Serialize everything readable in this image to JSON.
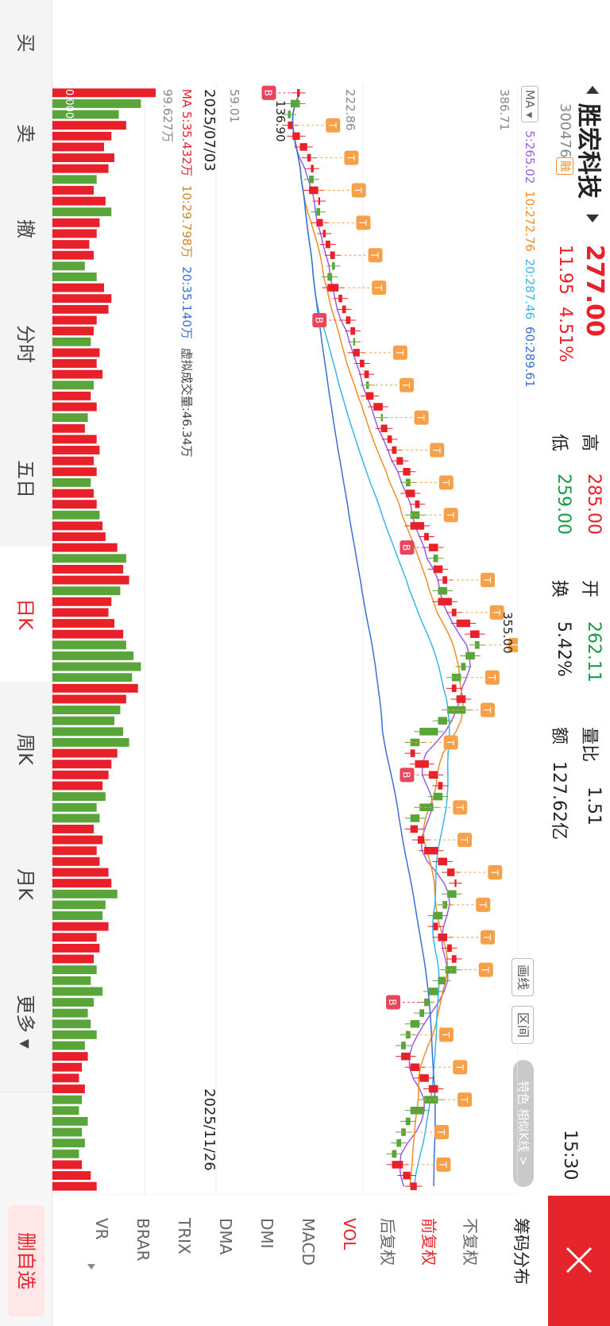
{
  "header": {
    "stock_name": "胜宏科技",
    "stock_code": "300476",
    "margin_badge": "融",
    "price": "277.00",
    "change": "11.95",
    "change_pct": "4.51%",
    "high_label": "高",
    "high_value": "285.00",
    "low_label": "低",
    "low_value": "259.00",
    "open_label": "开",
    "open_value": "262.11",
    "turnover_label": "换",
    "turnover_value": "5.42%",
    "volume_ratio_label": "量比",
    "volume_ratio_value": "1.51",
    "amount_label": "额",
    "amount_value": "127.62亿",
    "time": "15:30"
  },
  "ma_legend": {
    "selector": "MA",
    "ma5": "5:265.02",
    "ma10": "10:272.76",
    "ma20": "20:287.46",
    "ma60": "60:289.61"
  },
  "chart_tools": {
    "draw_line": "画线",
    "interval": "区间",
    "special": "特色 相似K线 >"
  },
  "price_axis": {
    "top": "386.71",
    "mid": "222.86",
    "bottom": "59.01",
    "max_marker": "355.00",
    "min_marker": "136.90"
  },
  "date_axis": {
    "start": "2025/07/03",
    "end": "2025/11/26"
  },
  "volume_legend": {
    "ma5": "MA 5:35.432万",
    "ma10": "10:29.798万",
    "ma20": "20:35.140万",
    "virtual": "虚拟成交量:46.34万",
    "axis_top": "99.627万",
    "axis_label": "0.000"
  },
  "side_panel": {
    "items": [
      "筹码分布",
      "不复权",
      "前复权",
      "后复权",
      "VOL",
      "MACD",
      "DMI",
      "DMA",
      "TRIX",
      "BRAR",
      "VR"
    ],
    "selected_index": 2,
    "selected_indicator_index": 4
  },
  "bottom_nav": {
    "items": [
      "买",
      "卖",
      "撤",
      "分时",
      "五日",
      "日K",
      "周K",
      "月K",
      "更多"
    ],
    "active_index": 5
  },
  "favorite_button": "删自选",
  "signal_labels": {
    "buy": "B",
    "sell": "T"
  },
  "colors": {
    "up": "#e8202a",
    "down": "#5aa53a",
    "ma5": "#9b5de5",
    "ma10": "#f28c28",
    "ma20": "#38b6e8",
    "ma60": "#3a6fd8",
    "sell_signal": "#f7a04a",
    "buy_signal": "#e9455d"
  },
  "chart_data": {
    "type": "candlestick",
    "date_range": [
      "2025/07/03",
      "2025/11/26"
    ],
    "ylim": [
      59.01,
      386.71
    ],
    "close_series": [
      150,
      140,
      137,
      142,
      150,
      158,
      162,
      165,
      160,
      170,
      172,
      168,
      175,
      178,
      183,
      188,
      185,
      180,
      192,
      196,
      200,
      205,
      210,
      208,
      215,
      220,
      225,
      222,
      230,
      240,
      238,
      245,
      250,
      255,
      262,
      270,
      265,
      275,
      280,
      270,
      285,
      290,
      300,
      295,
      305,
      310,
      300,
      315,
      320,
      335,
      345,
      340,
      330,
      325,
      315,
      320,
      330,
      310,
      300,
      280,
      270,
      275,
      290,
      300,
      305,
      295,
      280,
      270,
      278,
      285,
      300,
      310,
      318,
      320,
      310,
      305,
      295,
      300,
      310,
      315,
      320,
      308,
      300,
      290,
      285,
      280,
      270,
      265,
      260,
      270,
      280,
      290,
      300,
      285,
      270,
      265,
      260,
      255,
      250,
      262,
      270,
      277
    ],
    "volume_series": [
      70,
      60,
      45,
      50,
      40,
      35,
      42,
      38,
      30,
      28,
      36,
      40,
      32,
      30,
      25,
      28,
      22,
      30,
      35,
      40,
      38,
      30,
      28,
      26,
      32,
      30,
      34,
      28,
      26,
      30,
      24,
      22,
      30,
      32,
      28,
      30,
      26,
      28,
      30,
      32,
      34,
      36,
      44,
      50,
      48,
      52,
      46,
      40,
      38,
      42,
      48,
      50,
      55,
      60,
      54,
      58,
      50,
      46,
      42,
      48,
      52,
      44,
      40,
      38,
      34,
      36,
      30,
      32,
      28,
      34,
      30,
      32,
      38,
      40,
      44,
      36,
      34,
      38,
      30,
      32,
      28,
      30,
      26,
      34,
      28,
      24,
      26,
      30,
      22,
      24,
      20,
      18,
      22,
      20,
      18,
      24,
      20,
      22,
      18,
      20,
      26,
      30
    ]
  }
}
